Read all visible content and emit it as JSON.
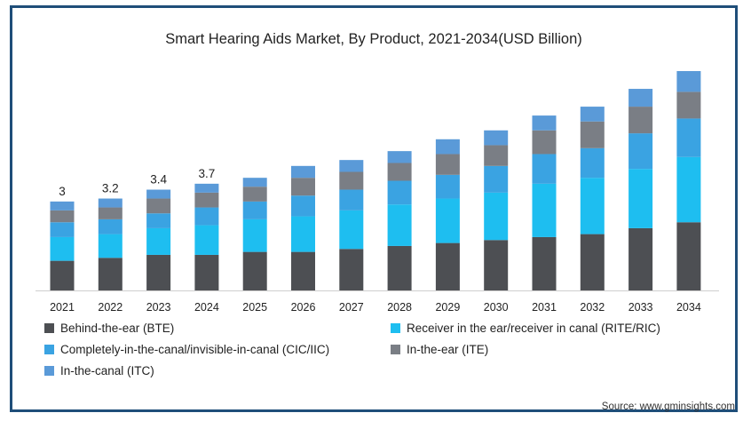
{
  "chart_data": {
    "type": "bar",
    "stacked": true,
    "title": "Smart Hearing Aids Market, By Product, 2021-2034(USD Billion)",
    "categories": [
      "2021",
      "2022",
      "2023",
      "2024",
      "2025",
      "2026",
      "2027",
      "2028",
      "2029",
      "2030",
      "2031",
      "2032",
      "2033",
      "2034"
    ],
    "totals_labeled": [
      "3",
      "3.2",
      "3.4",
      "3.7"
    ],
    "series": [
      {
        "name": "Behind-the-ear (BTE)",
        "color": "#4d4f53",
        "values": [
          1.0,
          1.1,
          1.2,
          1.2,
          1.3,
          1.3,
          1.4,
          1.5,
          1.6,
          1.7,
          1.8,
          1.9,
          2.1,
          2.3
        ]
      },
      {
        "name": "Receiver in the ear/receiver in canal (RITE/RIC)",
        "color": "#1ebef0",
        "values": [
          0.8,
          0.8,
          0.9,
          1.0,
          1.1,
          1.2,
          1.3,
          1.4,
          1.5,
          1.6,
          1.8,
          1.9,
          2.0,
          2.2
        ]
      },
      {
        "name": "Completely-in-the-canal/invisible-in-canal (CIC/IIC)",
        "color": "#3aa3e2",
        "values": [
          0.5,
          0.5,
          0.5,
          0.6,
          0.6,
          0.7,
          0.7,
          0.8,
          0.8,
          0.9,
          1.0,
          1.0,
          1.2,
          1.3
        ]
      },
      {
        "name": "In-the-ear (ITE)",
        "color": "#7a7e85",
        "values": [
          0.4,
          0.4,
          0.5,
          0.5,
          0.5,
          0.6,
          0.6,
          0.6,
          0.7,
          0.7,
          0.8,
          0.9,
          0.9,
          0.9
        ]
      },
      {
        "name": "In-the-canal (ITC)",
        "color": "#5a9ad8",
        "values": [
          0.3,
          0.3,
          0.3,
          0.3,
          0.3,
          0.4,
          0.4,
          0.4,
          0.5,
          0.5,
          0.5,
          0.5,
          0.6,
          0.7
        ]
      }
    ],
    "ylim": [
      0,
      8
    ],
    "grid": false,
    "legend_position": "bottom"
  },
  "source": "Source: www.gminsights.com"
}
